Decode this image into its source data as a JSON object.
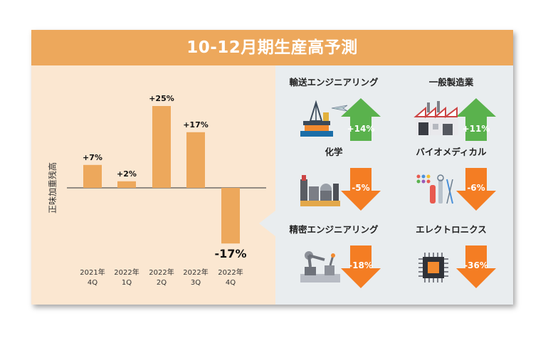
{
  "title": "10-12月期生産高予測",
  "colors": {
    "header": "#eda85c",
    "left_bg": "#fbe7d1",
    "right_bg": "#e9edef",
    "bar": "#eda85c",
    "up": "#5ab24d",
    "down": "#f47d23"
  },
  "chart_data": {
    "type": "bar",
    "ylabel": "正味加重残高",
    "categories": [
      {
        "line1": "2021年",
        "line2": "4Q"
      },
      {
        "line1": "2022年",
        "line2": "1Q"
      },
      {
        "line1": "2022年",
        "line2": "2Q"
      },
      {
        "line1": "2022年",
        "line2": "3Q"
      },
      {
        "line1": "2022年",
        "line2": "4Q"
      }
    ],
    "values": [
      7,
      2,
      25,
      17,
      -17
    ],
    "labels": [
      "+7%",
      "+2%",
      "+25%",
      "+17%",
      "-17%"
    ]
  },
  "sectors": [
    {
      "name": "輸送エンジニアリング",
      "value": "+14%",
      "direction": "up",
      "icon": "oil-rig-airplane-icon"
    },
    {
      "name": "一般製造業",
      "value": "+11%",
      "direction": "up",
      "icon": "factory-icon"
    },
    {
      "name": "化学",
      "value": "-5%",
      "direction": "down",
      "icon": "chemical-plant-icon"
    },
    {
      "name": "バイオメディカル",
      "value": "-6%",
      "direction": "down",
      "icon": "lab-tools-icon"
    },
    {
      "name": "精密エンジニアリング",
      "value": "-18%",
      "direction": "down",
      "icon": "robot-arm-icon"
    },
    {
      "name": "エレクトロニクス",
      "value": "-36%",
      "direction": "down",
      "icon": "microchip-icon"
    }
  ]
}
